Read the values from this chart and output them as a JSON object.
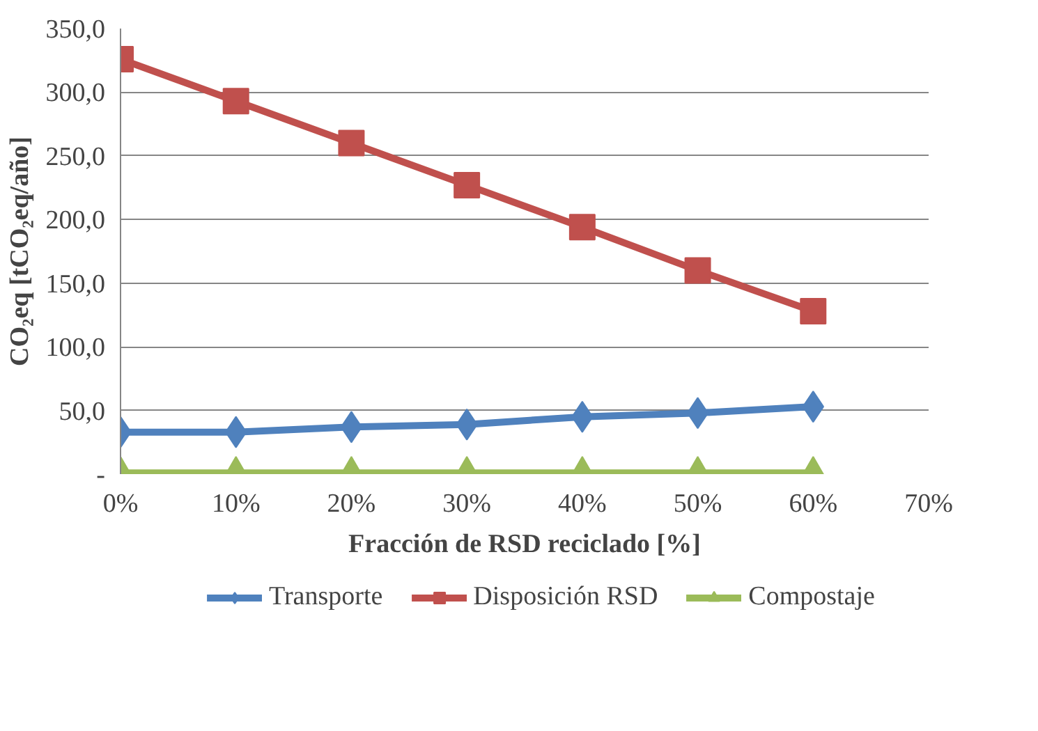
{
  "chart_data": {
    "type": "line",
    "xlabel": "Fracción de RSD reciclado [%]",
    "ylabel": "CO₂eq [tCO₂eq/año]",
    "categories": [
      "0%",
      "10%",
      "20%",
      "30%",
      "40%",
      "50%",
      "60%",
      "70%"
    ],
    "series": [
      {
        "name": "Transporte",
        "color": "#4f81bd",
        "marker": "diamond",
        "values": [
          33,
          33,
          37,
          39,
          45,
          48,
          53,
          null
        ]
      },
      {
        "name": "Disposición RSD",
        "color": "#c0504d",
        "marker": "square",
        "values": [
          326,
          293,
          260,
          227,
          194,
          160,
          128,
          null
        ]
      },
      {
        "name": "Compostaje",
        "color": "#9bbb59",
        "marker": "triangle",
        "values": [
          1,
          1,
          1,
          1,
          1,
          1,
          1,
          null
        ]
      }
    ],
    "ylim": [
      0,
      350
    ],
    "yticks": [
      {
        "value": 0,
        "label": "-"
      },
      {
        "value": 50,
        "label": "50,0"
      },
      {
        "value": 100,
        "label": "100,0"
      },
      {
        "value": 150,
        "label": "150,0"
      },
      {
        "value": 200,
        "label": "200,0"
      },
      {
        "value": 250,
        "label": "250,0"
      },
      {
        "value": 300,
        "label": "300,0"
      },
      {
        "value": 350,
        "label": "350,0"
      }
    ],
    "grid": "y",
    "legend": "bottom",
    "line_style": "solid"
  }
}
